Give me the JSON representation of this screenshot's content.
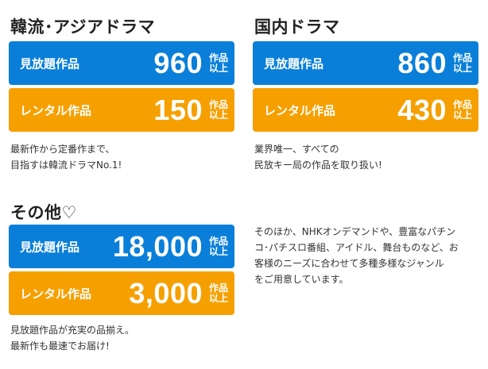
{
  "colors": {
    "blue": "#0a7fd9",
    "orange": "#f5a000"
  },
  "sections": {
    "korean": {
      "title": "韓流･アジアドラマ",
      "unlimited": {
        "label": "見放題作品",
        "count": "960",
        "unit_top": "作品",
        "unit_bottom": "以上"
      },
      "rental": {
        "label": "レンタル作品",
        "count": "150",
        "unit_top": "作品",
        "unit_bottom": "以上"
      },
      "desc_line1": "最新作から定番作まで、",
      "desc_line2": "目指すは韓流ドラマNo.1!"
    },
    "domestic": {
      "title": "国内ドラマ",
      "unlimited": {
        "label": "見放題作品",
        "count": "860",
        "unit_top": "作品",
        "unit_bottom": "以上"
      },
      "rental": {
        "label": "レンタル作品",
        "count": "430",
        "unit_top": "作品",
        "unit_bottom": "以上"
      },
      "desc_line1": "業界唯一、すべての",
      "desc_line2": "民放キー局の作品を取り扱い!"
    },
    "other": {
      "title": "その他♡",
      "unlimited": {
        "label": "見放題作品",
        "count": "18,000",
        "unit_top": "作品",
        "unit_bottom": "以上"
      },
      "rental": {
        "label": "レンタル作品",
        "count": "3,000",
        "unit_top": "作品",
        "unit_bottom": "以上"
      },
      "desc_line1": "見放題作品が充実の品揃え。",
      "desc_line2": "最新作も最速でお届け!",
      "extra_line1": "そのほか、NHKオンデマンドや、豊富なパチン",
      "extra_line2": "コ･パチスロ番組、アイドル、舞台ものなど、お",
      "extra_line3": "客様のニーズに合わせて多種多様なジャンル",
      "extra_line4": "をご用意しています。"
    }
  }
}
